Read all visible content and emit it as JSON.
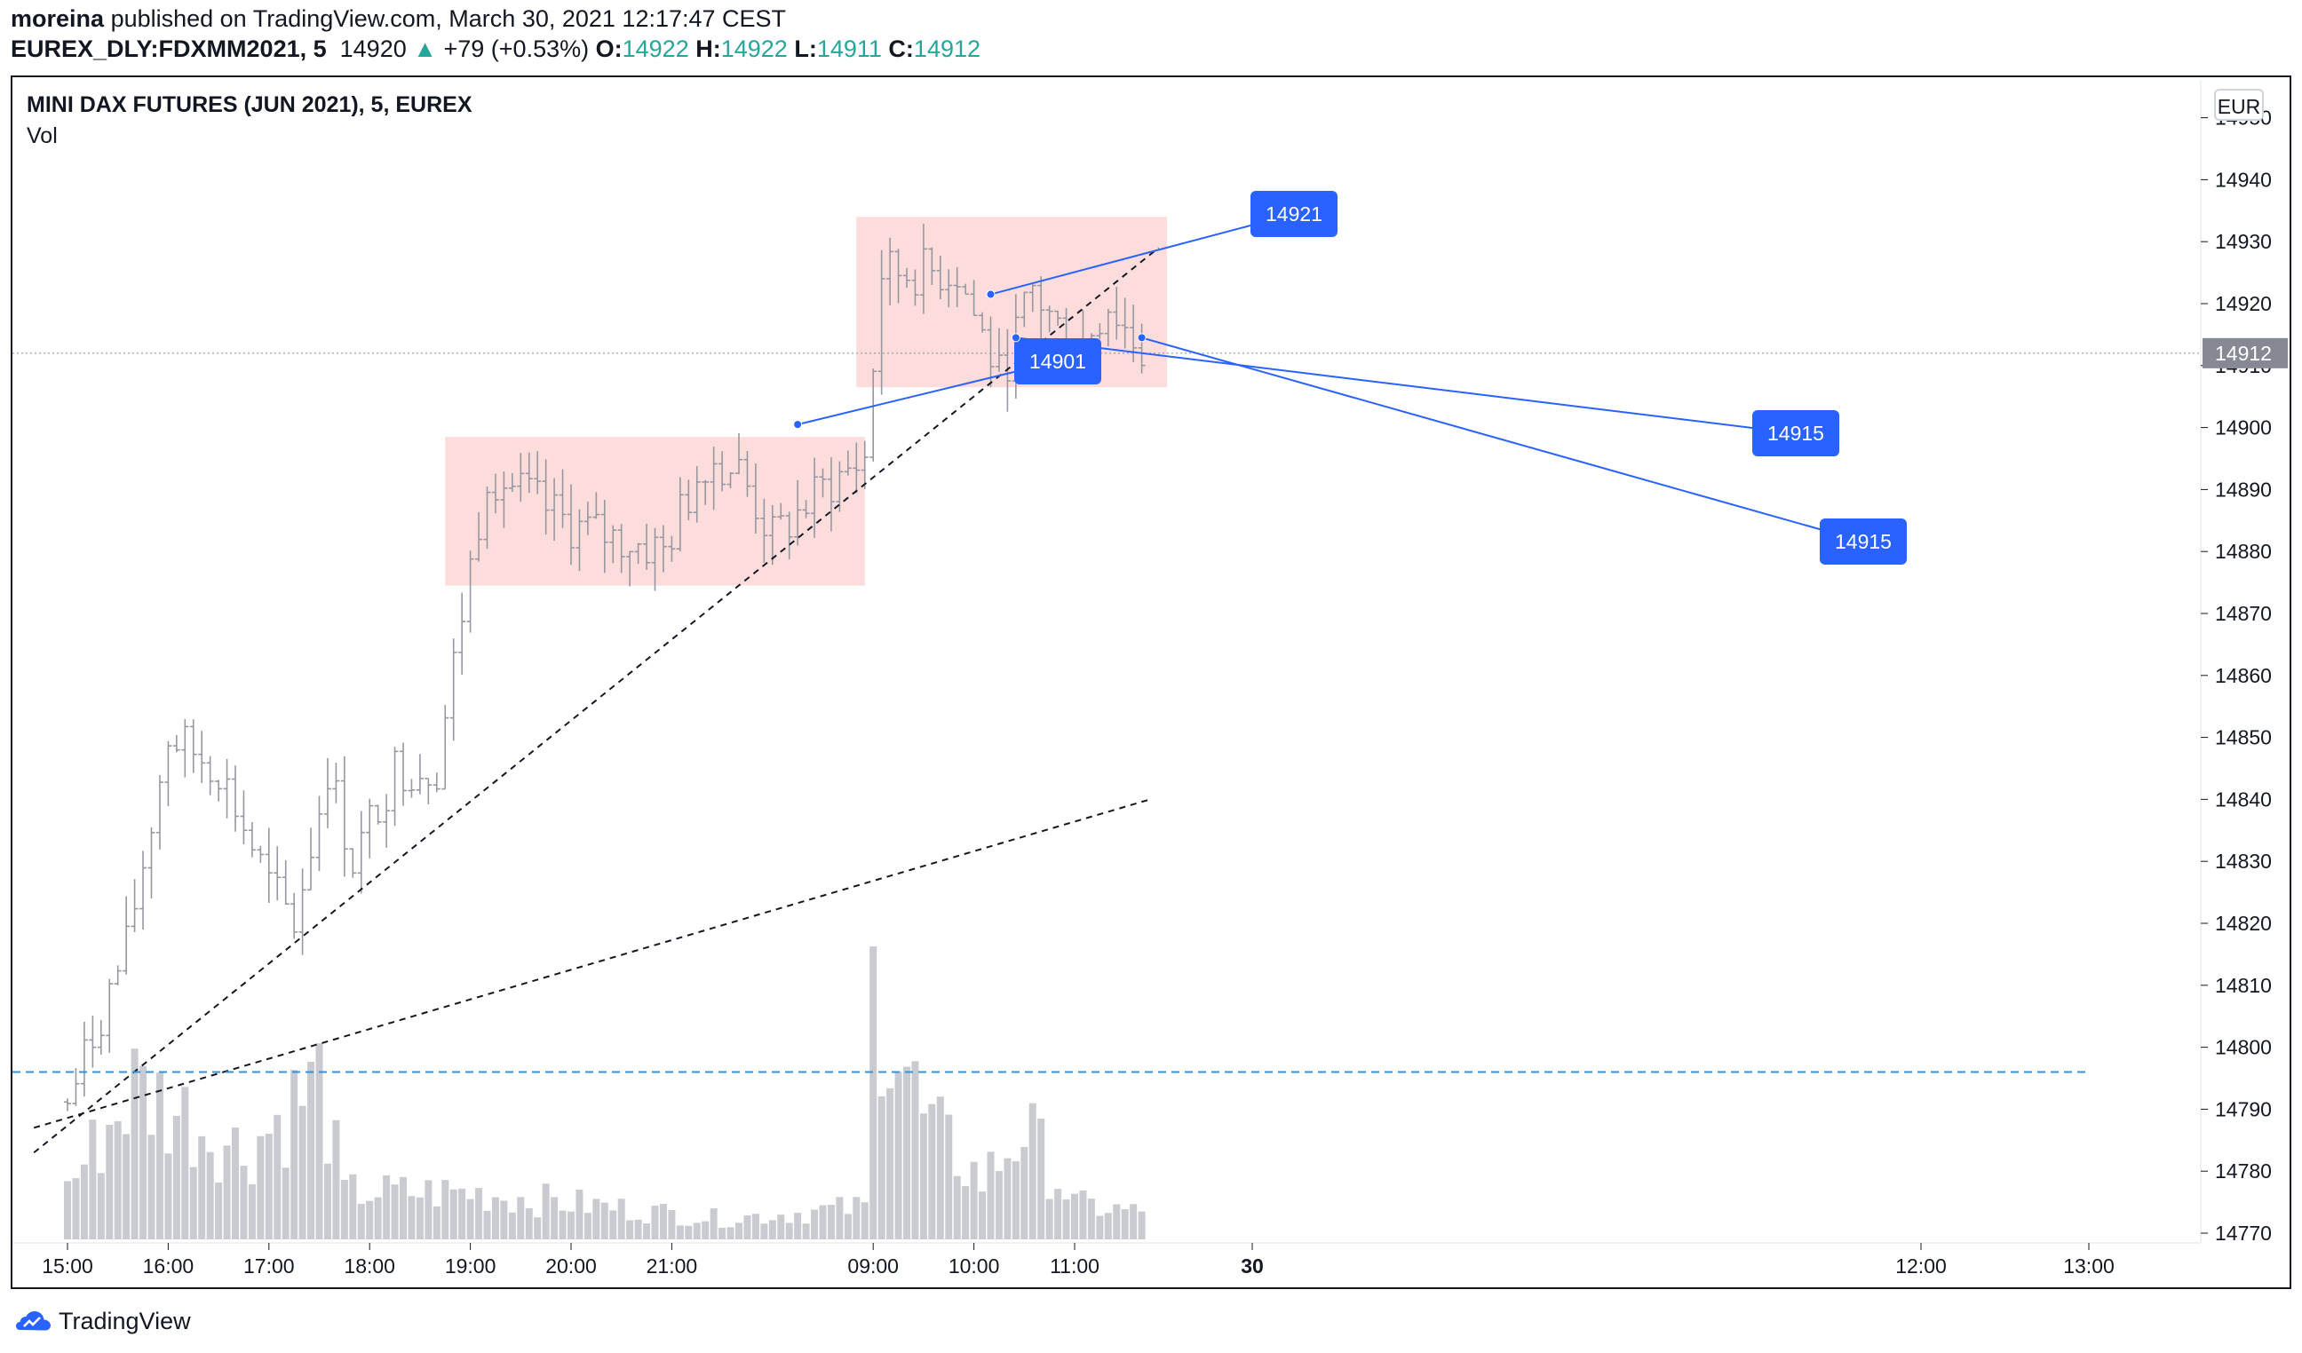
{
  "header": {
    "author": "moreina",
    "published_text": "published on TradingView.com, March 30, 2021 12:17:47 CEST",
    "symbol": "EUREX_DLY:FDXMM2021, 5",
    "last": "14920",
    "change_arrow": "▲",
    "change": "+79 (+0.53%)",
    "o_label": "O:",
    "o_value": "14922",
    "h_label": "H:",
    "h_value": "14922",
    "l_label": "L:",
    "l_value": "14911",
    "c_label": "C:",
    "c_value": "14912"
  },
  "legend": {
    "title": "MINI DAX FUTURES (JUN 2021), 5, EUREX",
    "indicator": "Vol"
  },
  "currency": "EUR",
  "footer": {
    "brand": "TradingView",
    "logo_icon": "tradingview-logo-icon"
  },
  "colors": {
    "up": "#26a69a",
    "bars": "#9598a1",
    "volume": "#c9cbd1",
    "zone": "#fddcdc",
    "callout": "#2962ff",
    "level": "#2196f3",
    "price_tag": "#868993"
  },
  "chart_data": {
    "type": "ohlc",
    "title": "MINI DAX FUTURES (JUN 2021), 5, EUREX",
    "y_range": [
      14770,
      14952
    ],
    "y_ticks": [
      14770,
      14780,
      14790,
      14800,
      14810,
      14820,
      14830,
      14840,
      14850,
      14860,
      14870,
      14880,
      14890,
      14900,
      14910,
      14920,
      14930,
      14940,
      14950
    ],
    "x_ticks": [
      "15:00",
      "16:00",
      "17:00",
      "18:00",
      "19:00",
      "20:00",
      "21:00",
      "30",
      "09:00",
      "10:00",
      "11:00",
      "12:00",
      "13:00"
    ],
    "x_tick_times": [
      "2021-03-29 15:00",
      "2021-03-29 16:00",
      "2021-03-29 17:00",
      "2021-03-29 18:00",
      "2021-03-29 19:00",
      "2021-03-29 20:00",
      "2021-03-29 21:00",
      "2021-03-30 08:00",
      "2021-03-30 09:00",
      "2021-03-30 10:00",
      "2021-03-30 11:00",
      "2021-03-30 12:00",
      "2021-03-30 13:00"
    ],
    "current_price": 14912,
    "horizontal_level": 14796,
    "callouts": [
      {
        "label": "14921",
        "time": "2021-03-30 10:10",
        "price": 14921.5
      },
      {
        "label": "14901",
        "time": "2021-03-30 08:15",
        "price": 14900.5
      },
      {
        "label": "14915",
        "time": "2021-03-30 10:25",
        "price": 14914.5
      },
      {
        "label": "14915",
        "time": "2021-03-30 11:40",
        "price": 14914.5
      }
    ],
    "zones": [
      {
        "time_start": "2021-03-29 18:45",
        "time_end": "2021-03-30 08:55",
        "price_low": 14874.5,
        "price_high": 14898.5
      },
      {
        "time_start": "2021-03-30 08:50",
        "time_end": "2021-03-30 11:55",
        "price_low": 14906.5,
        "price_high": 14934
      }
    ],
    "trendlines": [
      {
        "time_start": "2021-03-29 14:40",
        "price_start": 14783,
        "time_end": "2021-03-30 11:50",
        "price_end": 14929
      },
      {
        "time_start": "2021-03-29 14:40",
        "price_start": 14787,
        "time_end": "2021-03-30 11:45",
        "price_end": 14840
      }
    ],
    "anchors": [
      {
        "time": "2021-03-29 15:00",
        "close": 14791
      },
      {
        "time": "2021-03-29 15:35",
        "close": 14816
      },
      {
        "time": "2021-03-29 16:00",
        "close": 14850
      },
      {
        "time": "2021-03-29 16:30",
        "close": 14845
      },
      {
        "time": "2021-03-29 17:00",
        "close": 14826
      },
      {
        "time": "2021-03-29 17:15",
        "close": 14820
      },
      {
        "time": "2021-03-29 17:35",
        "close": 14845
      },
      {
        "time": "2021-03-29 17:50",
        "close": 14830
      },
      {
        "time": "2021-03-29 18:15",
        "close": 14845
      },
      {
        "time": "2021-03-29 18:40",
        "close": 14845
      },
      {
        "time": "2021-03-29 18:55",
        "close": 14870
      },
      {
        "time": "2021-03-29 19:10",
        "close": 14893
      },
      {
        "time": "2021-03-29 20:00",
        "close": 14884
      },
      {
        "time": "2021-03-29 20:55",
        "close": 14880
      },
      {
        "time": "2021-03-29 21:20",
        "close": 14895
      },
      {
        "time": "2021-03-29 21:40",
        "close": 14893
      },
      {
        "time": "2021-03-30 08:00",
        "close": 14882
      },
      {
        "time": "2021-03-30 08:30",
        "close": 14890
      },
      {
        "time": "2021-03-30 08:55",
        "close": 14895
      },
      {
        "time": "2021-03-30 09:05",
        "close": 14925
      },
      {
        "time": "2021-03-30 09:30",
        "close": 14925
      },
      {
        "time": "2021-03-30 09:50",
        "close": 14925
      },
      {
        "time": "2021-03-30 10:15",
        "close": 14908
      },
      {
        "time": "2021-03-30 10:35",
        "close": 14922
      },
      {
        "time": "2021-03-30 11:00",
        "close": 14912
      },
      {
        "time": "2021-03-30 11:20",
        "close": 14920
      },
      {
        "time": "2021-03-30 11:40",
        "close": 14912
      }
    ],
    "volume_anchors": [
      {
        "time": "2021-03-29 15:00",
        "volume": 900
      },
      {
        "time": "2021-03-29 15:40",
        "volume": 2600
      },
      {
        "time": "2021-03-29 16:05",
        "volume": 2200
      },
      {
        "time": "2021-03-29 16:45",
        "volume": 1500
      },
      {
        "time": "2021-03-29 17:30",
        "volume": 2700
      },
      {
        "time": "2021-03-29 17:45",
        "volume": 800
      },
      {
        "time": "2021-03-29 19:00",
        "volume": 800
      },
      {
        "time": "2021-03-29 21:30",
        "volume": 350
      },
      {
        "time": "2021-03-30 08:55",
        "volume": 550
      },
      {
        "time": "2021-03-30 09:00",
        "volume": 4800
      },
      {
        "time": "2021-03-30 09:30",
        "volume": 2000
      },
      {
        "time": "2021-03-30 10:05",
        "volume": 1000
      },
      {
        "time": "2021-03-30 10:30",
        "volume": 1900
      },
      {
        "time": "2021-03-30 11:00",
        "volume": 600
      },
      {
        "time": "2021-03-30 11:40",
        "volume": 450
      }
    ]
  }
}
